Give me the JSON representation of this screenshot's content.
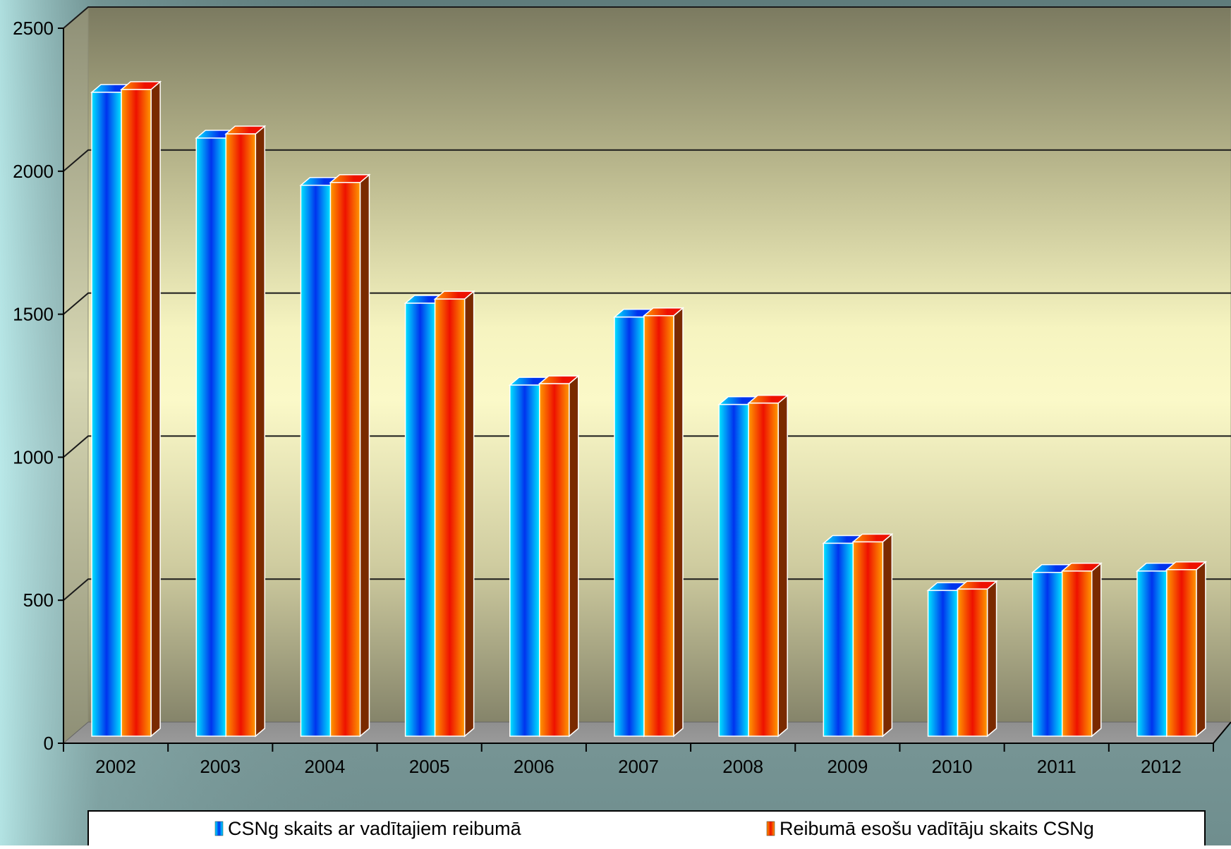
{
  "chart_data": {
    "type": "bar",
    "title": "",
    "xlabel": "",
    "ylabel": "",
    "categories": [
      "2002",
      "2003",
      "2004",
      "2005",
      "2006",
      "2007",
      "2008",
      "2009",
      "2010",
      "2011",
      "2012"
    ],
    "series": [
      {
        "name": "CSNg skaits ar vadītajiem reibumā",
        "values": [
          2320,
          2155,
          1985,
          1560,
          1265,
          1510,
          1195,
          695,
          525,
          590,
          595
        ],
        "colors": [
          "#00e5ff",
          "#0033ee"
        ]
      },
      {
        "name": "Reibumā esošu vadītāju skaits CSNg",
        "values": [
          2330,
          2170,
          1995,
          1575,
          1270,
          1515,
          1200,
          700,
          530,
          595,
          600
        ],
        "colors": [
          "#ff9900",
          "#ee1100"
        ]
      }
    ],
    "ylim": [
      0,
      2500
    ],
    "yticks": [
      0,
      500,
      1000,
      1500,
      2000,
      2500
    ],
    "grid": true,
    "legend_position": "bottom"
  }
}
